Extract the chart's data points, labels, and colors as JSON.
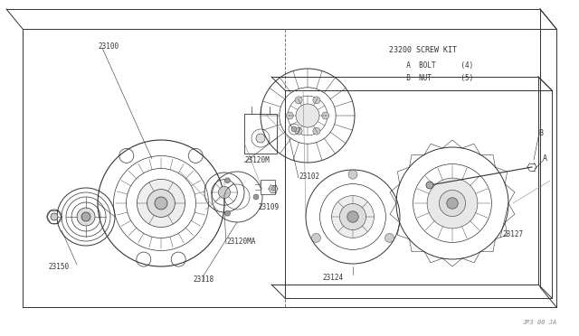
{
  "bg_color": "#ffffff",
  "line_color": "#333333",
  "text_color": "#333333",
  "fig_width": 6.4,
  "fig_height": 3.72,
  "dpi": 100,
  "screw_kit_title": "23200 SCREW KIT",
  "screw_kit_line1": "  A  BOLT      (4)",
  "screw_kit_line2": "  B  NUT       (5)",
  "footer": "JP3 00 JA",
  "box_color": "#555555",
  "comp_lw": 0.6,
  "label_fs": 5.5
}
